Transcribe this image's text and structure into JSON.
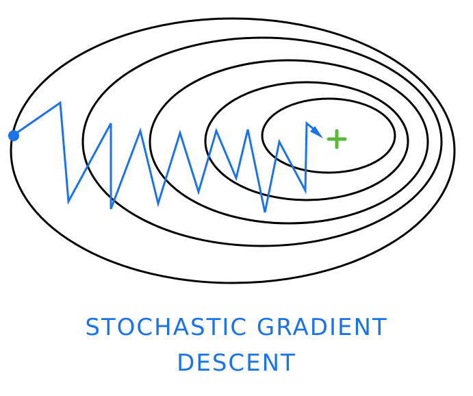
{
  "caption": {
    "line1": "STOCHASTIC GRADIENT",
    "line2": "DESCENT"
  },
  "colors": {
    "contour": "#000000",
    "path": "#1a73e8",
    "optimum": "#5cb83c"
  },
  "icons": {
    "start": "start-point-icon",
    "optimum": "plus-icon",
    "arrow": "arrowhead-icon"
  }
}
